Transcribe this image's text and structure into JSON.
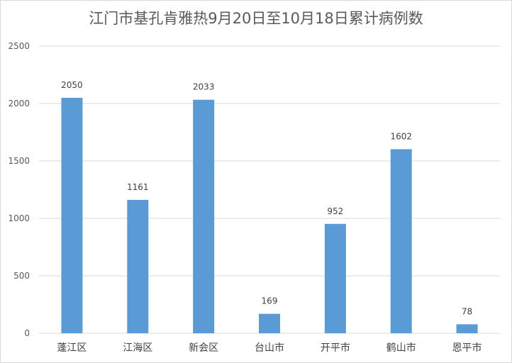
{
  "chart_data": {
    "type": "bar",
    "title": "江门市基孔肯雅热9月20日至10月18日累计病例数",
    "categories": [
      "蓬江区",
      "江海区",
      "新会区",
      "台山市",
      "开平市",
      "鹤山市",
      "恩平市"
    ],
    "values": [
      2050,
      1161,
      2033,
      169,
      952,
      1602,
      78
    ],
    "ylim": [
      0,
      2500
    ],
    "yticks": [
      0,
      500,
      1000,
      1500,
      2000,
      2500
    ],
    "xlabel": "",
    "ylabel": "",
    "grid": true,
    "legend": "none",
    "bar_color": "#5b9bd5",
    "grid_color": "#d9d9d9"
  }
}
